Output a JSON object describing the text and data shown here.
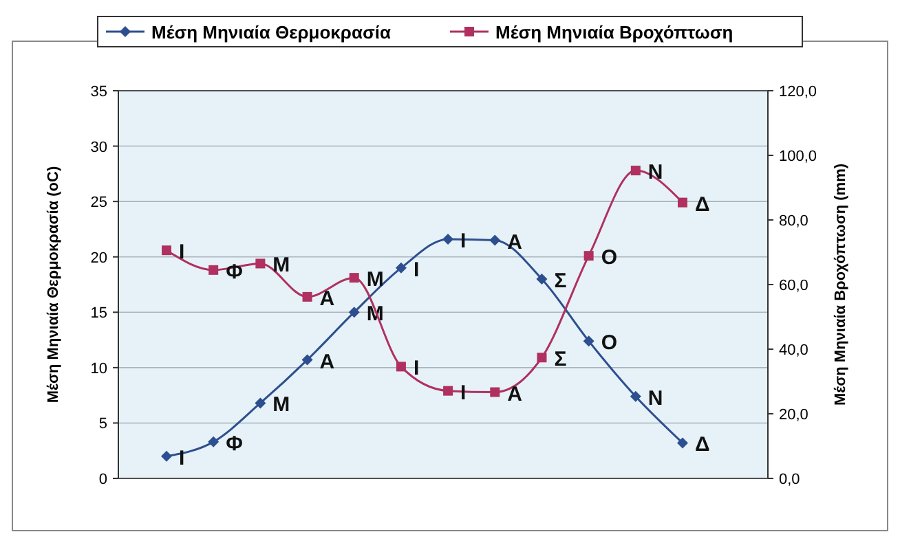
{
  "chart_data": {
    "type": "line",
    "categories": [
      null,
      null,
      null,
      null,
      null,
      null,
      null,
      null,
      null,
      null,
      null,
      null
    ],
    "ylabel": "Μέση Μηνιαία Θερμοκρασία (oC)",
    "y2label": "Μέση Μηνιαία Βροχόπτωση (mm)",
    "ylim": [
      0,
      35
    ],
    "yticks": [
      0,
      5,
      10,
      15,
      20,
      25,
      30,
      35
    ],
    "y2lim": [
      0,
      120
    ],
    "y2ticks": [
      {
        "value": 0,
        "label": "0,0"
      },
      {
        "value": 20,
        "label": "20,0"
      },
      {
        "value": 40,
        "label": "40,0"
      },
      {
        "value": 60,
        "label": "60,0"
      },
      {
        "value": 80,
        "label": "80,0"
      },
      {
        "value": 100,
        "label": "100,0"
      },
      {
        "value": 120,
        "label": "120,0"
      }
    ],
    "grid": "y",
    "legend": "top",
    "series": [
      {
        "name": "Μέση Μηνιαία Θερμοκρασία",
        "color": "#2e4f8f",
        "marker": "diamond",
        "values": [
          2.0,
          3.3,
          6.8,
          10.7,
          15.0,
          19.0,
          21.6,
          21.5,
          18.0,
          12.4,
          7.4,
          3.2
        ],
        "value_labels": [
          "Ι",
          "Φ",
          "Μ",
          "Α",
          "Μ",
          "Ι",
          "Ι",
          "Α",
          "Σ",
          "Ο",
          "Ν",
          "Δ"
        ]
      },
      {
        "name": "Μέση Μηνιαία Βροχόπτωση",
        "color": "#b03060",
        "marker": "square",
        "axis": "y2",
        "values": [
          70.6,
          64.5,
          66.5,
          56.2,
          62.1,
          34.6,
          27.1,
          26.7,
          37.4,
          68.9,
          95.3,
          85.4
        ],
        "value_labels": [
          "Ι",
          "Φ",
          "Μ",
          "Α",
          "Μ",
          "Ι",
          "Ι",
          "Α",
          "Σ",
          "Ο",
          "Ν",
          "Δ"
        ]
      }
    ]
  }
}
